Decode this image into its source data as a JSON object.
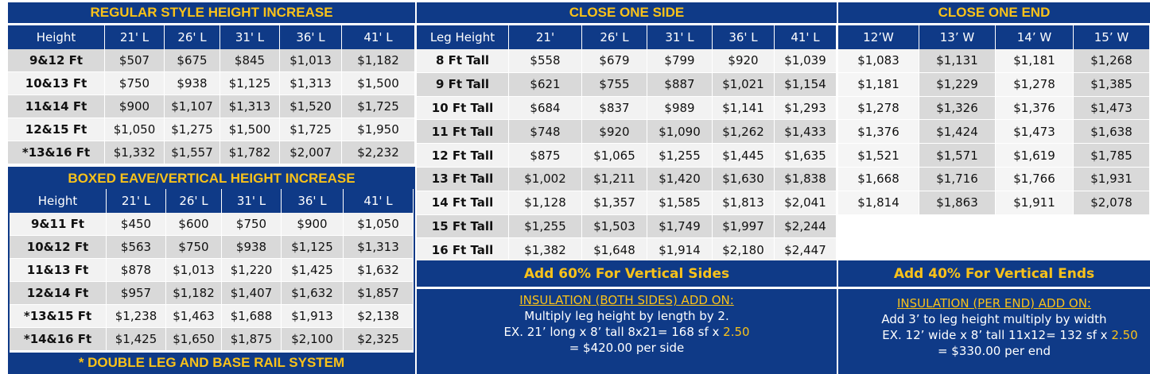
{
  "regular": {
    "title": "REGULAR STYLE HEIGHT INCREASE",
    "headers": [
      "Height",
      "21' L",
      "26' L",
      "31' L",
      "36' L",
      "41' L"
    ],
    "rows": [
      [
        "9&12 Ft",
        "$507",
        "$675",
        "$845",
        "$1,013",
        "$1,182"
      ],
      [
        "10&13 Ft",
        "$750",
        "$938",
        "$1,125",
        "$1,313",
        "$1,500"
      ],
      [
        "11&14 Ft",
        "$900",
        "$1,107",
        "$1,313",
        "$1,520",
        "$1,725"
      ],
      [
        "12&15 Ft",
        "$1,050",
        "$1,275",
        "$1,500",
        "$1,725",
        "$1,950"
      ],
      [
        "*13&16 Ft",
        "$1,332",
        "$1,557",
        "$1,782",
        "$2,007",
        "$2,232"
      ]
    ]
  },
  "boxed": {
    "title": "BOXED EAVE/VERTICAL HEIGHT INCREASE",
    "headers": [
      "Height",
      "21' L",
      "26' L",
      "31' L",
      "36' L",
      "41' L"
    ],
    "rows": [
      [
        "9&11 Ft",
        "$450",
        "$600",
        "$750",
        "$900",
        "$1,050"
      ],
      [
        "10&12 Ft",
        "$563",
        "$750",
        "$938",
        "$1,125",
        "$1,313"
      ],
      [
        "11&13 Ft",
        "$878",
        "$1,013",
        "$1,220",
        "$1,425",
        "$1,632"
      ],
      [
        "12&14 Ft",
        "$957",
        "$1,182",
        "$1,407",
        "$1,632",
        "$1,857"
      ],
      [
        "*13&15 Ft",
        "$1,238",
        "$1,463",
        "$1,688",
        "$1,913",
        "$2,138"
      ],
      [
        "*14&16 Ft",
        "$1,425",
        "$1,650",
        "$1,875",
        "$2,100",
        "$2,325"
      ]
    ],
    "footer": "* DOUBLE LEG AND BASE RAIL SYSTEM"
  },
  "close_side": {
    "title": "CLOSE ONE SIDE",
    "headers": [
      "Leg Height",
      "21'",
      "26' L",
      "31' L",
      "36' L",
      "41' L"
    ],
    "rows": [
      [
        "8 Ft Tall",
        "$558",
        "$679",
        "$799",
        "$920",
        "$1,039"
      ],
      [
        "9 Ft Tall",
        "$621",
        "$755",
        "$887",
        "$1,021",
        "$1,154"
      ],
      [
        "10 Ft Tall",
        "$684",
        "$837",
        "$989",
        "$1,141",
        "$1,293"
      ],
      [
        "11 Ft Tall",
        "$748",
        "$920",
        "$1,090",
        "$1,262",
        "$1,433"
      ],
      [
        "12 Ft Tall",
        "$875",
        "$1,065",
        "$1,255",
        "$1,445",
        "$1,635"
      ],
      [
        "13 Ft Tall",
        "$1,002",
        "$1,211",
        "$1,420",
        "$1,630",
        "$1,838"
      ],
      [
        "14 Ft Tall",
        "$1,128",
        "$1,357",
        "$1,585",
        "$1,813",
        "$2,041"
      ],
      [
        "15 Ft Tall",
        "$1,255",
        "$1,503",
        "$1,749",
        "$1,997",
        "$2,244"
      ],
      [
        "16 Ft Tall",
        "$1,382",
        "$1,648",
        "$1,914",
        "$2,180",
        "$2,447"
      ]
    ],
    "add_text": "Add 60% For Vertical Sides",
    "insulation_title": "INSULATION",
    "insulation_rest": " (BOTH SIDES) ADD ON:",
    "line1": "Multiply leg height by length by 2.",
    "line2a": "EX. 21’ long x 8’ tall 8x21= 168 sf x ",
    "line2b": "2.50",
    "line3": "= $420.00 per side"
  },
  "close_end": {
    "title": "CLOSE ONE END",
    "headers": [
      "12’W",
      "13’ W",
      "14’ W",
      "15’ W"
    ],
    "rows": [
      [
        "$1,083",
        "$1,131",
        "$1,181",
        "$1,268"
      ],
      [
        "$1,181",
        "$1,229",
        "$1,278",
        "$1,385"
      ],
      [
        "$1,278",
        "$1,326",
        "$1,376",
        "$1,473"
      ],
      [
        "$1,376",
        "$1,424",
        "$1,473",
        "$1,638"
      ],
      [
        "$1,521",
        "$1,571",
        "$1,619",
        "$1,785"
      ],
      [
        "$1,668",
        "$1,716",
        "$1,766",
        "$1,931"
      ],
      [
        "$1,814",
        "$1,863",
        "$1,911",
        "$2,078"
      ]
    ],
    "add_text": "Add 40% For Vertical Ends",
    "insulation_title": "INSULATION ",
    "insulation_rest": "(PER END) ADD ON:",
    "line1": "Add 3’ to leg height multiply by width",
    "line2a": "EX. 12’ wide x 8’ tall 11x12= 132 sf x ",
    "line2b": "2.50",
    "line3": "= $330.00 per end"
  }
}
